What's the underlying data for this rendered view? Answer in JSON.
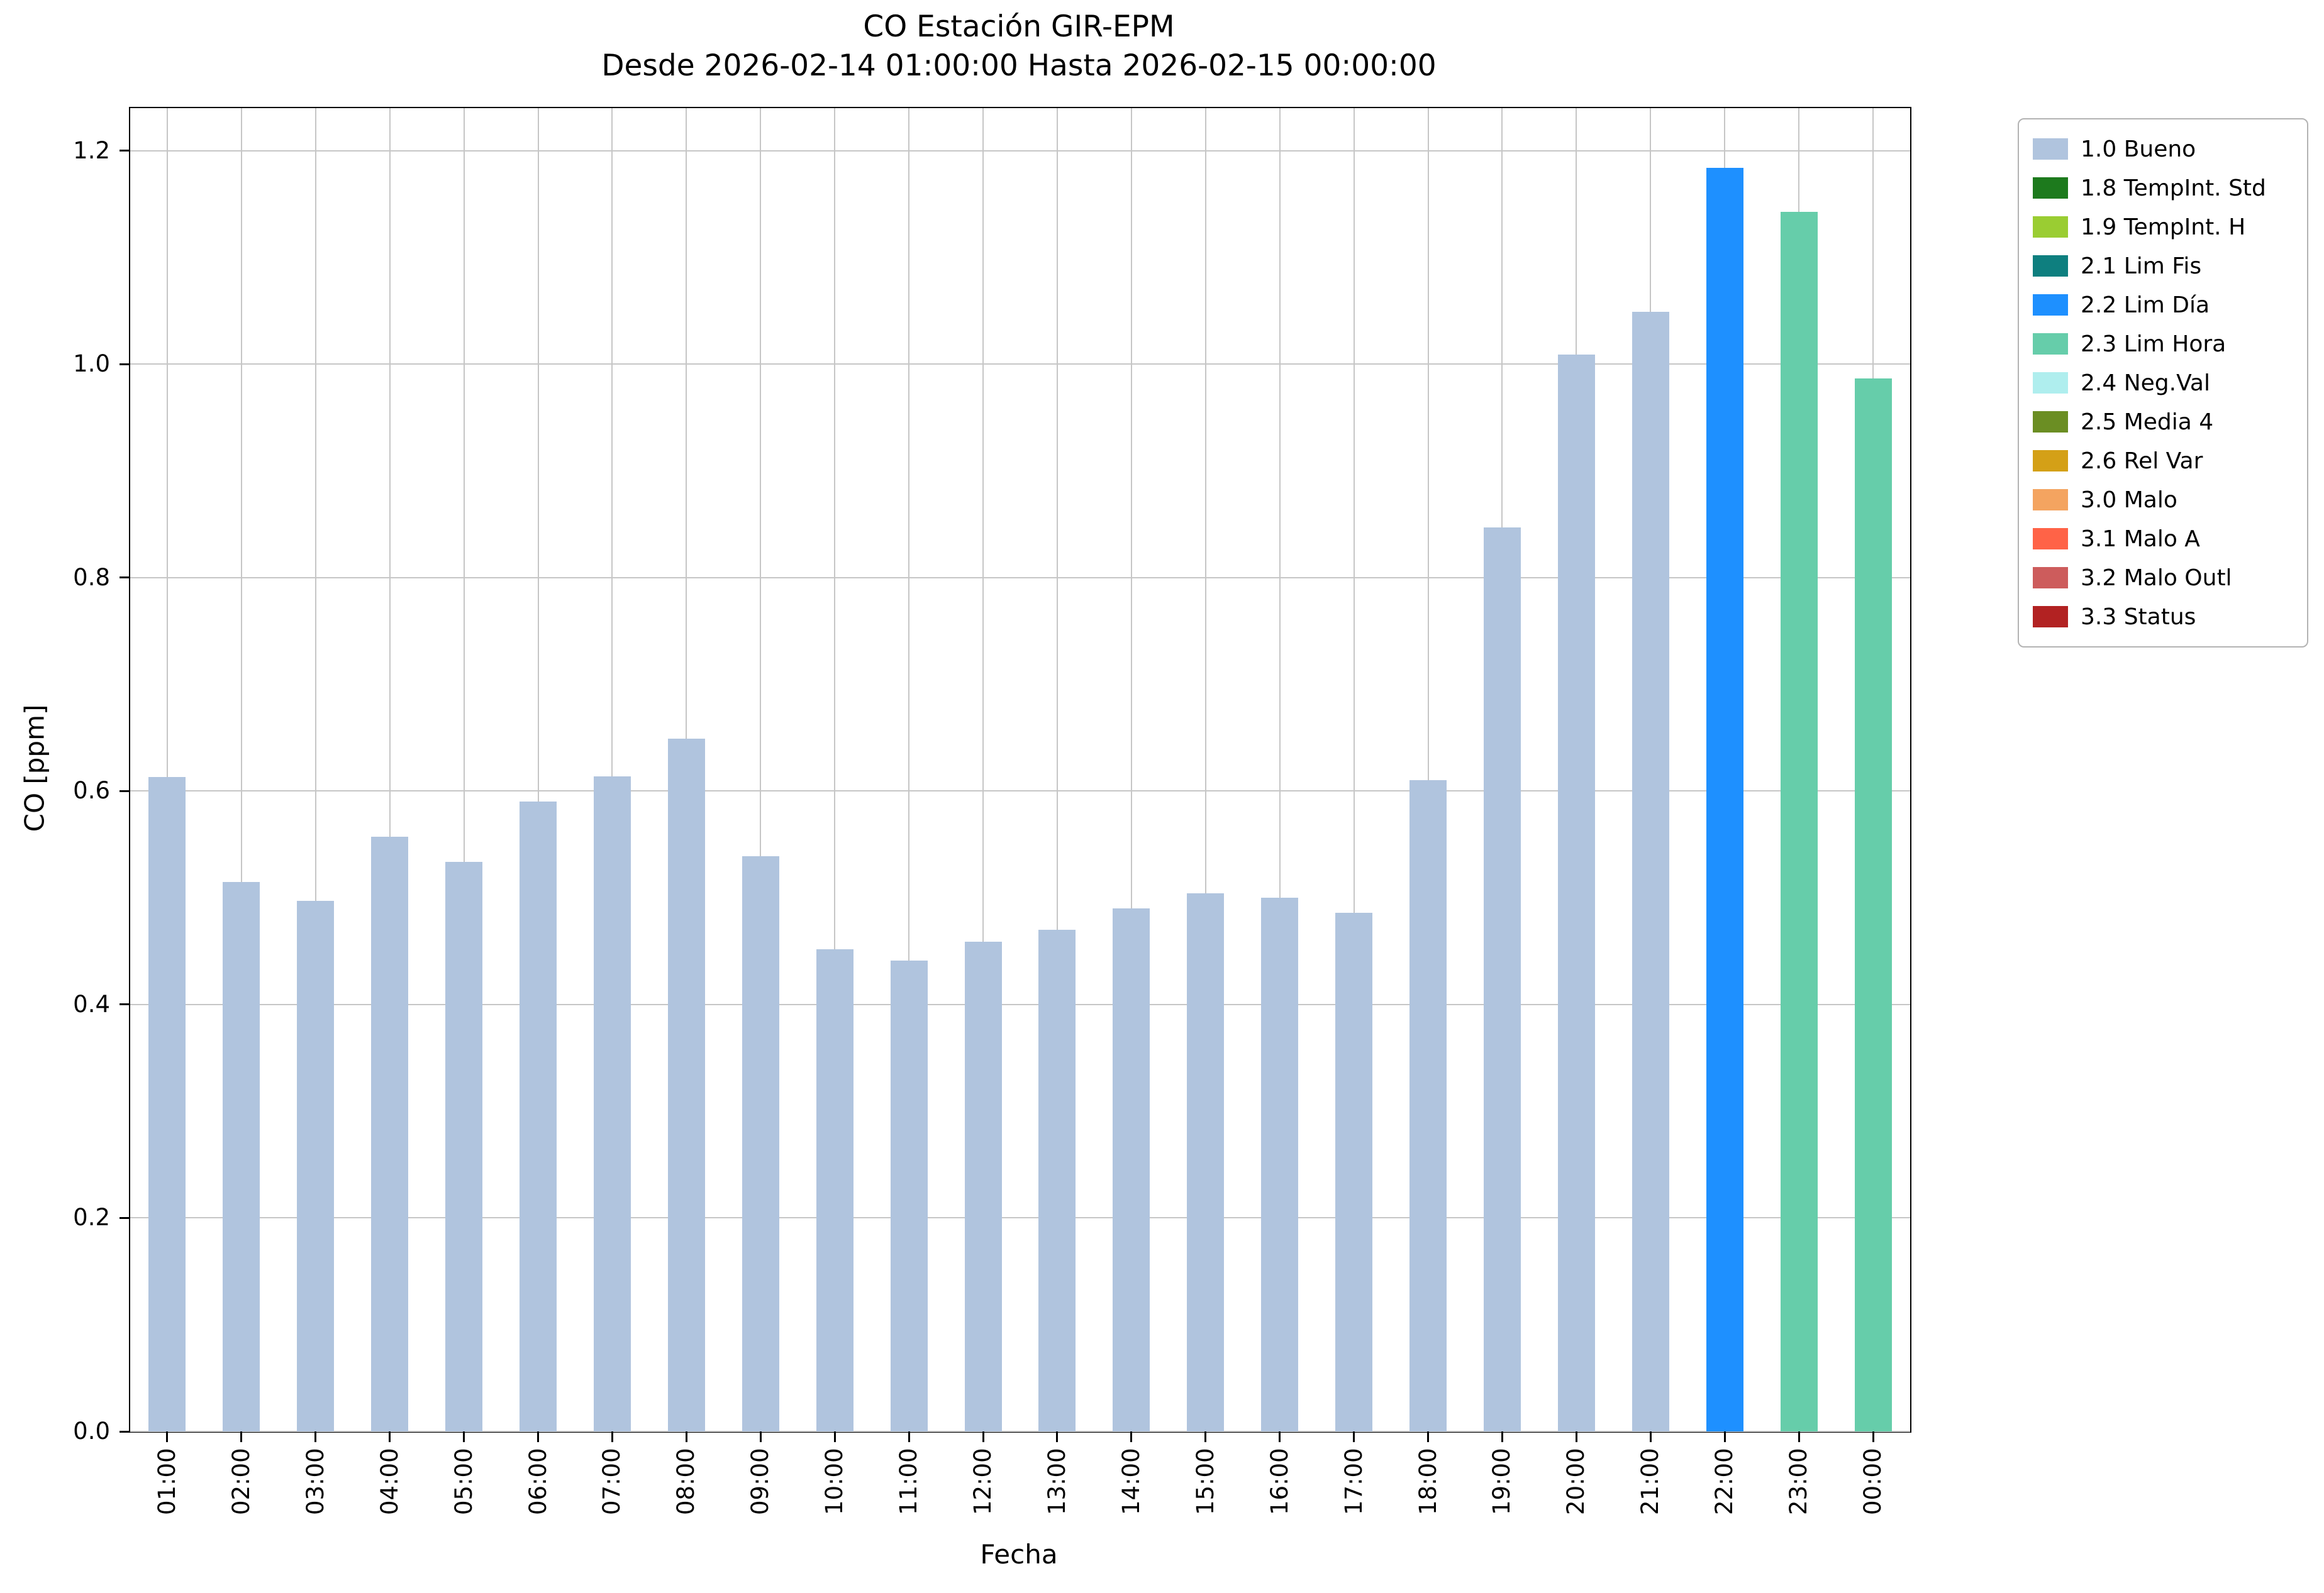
{
  "chart_data": {
    "type": "bar",
    "title": "CO Estación GIR-EPM",
    "subtitle": "Desde 2026-02-14 01:00:00 Hasta 2026-02-15 00:00:00",
    "xlabel": "Fecha",
    "ylabel": "CO [ppm]",
    "ylim": [
      0.0,
      1.24
    ],
    "yticks": [
      0.0,
      0.2,
      0.4,
      0.6,
      0.8,
      1.0,
      1.2
    ],
    "grid": true,
    "legend_position": "upper right, outside plot",
    "categories": [
      "01:00",
      "02:00",
      "03:00",
      "04:00",
      "05:00",
      "06:00",
      "07:00",
      "08:00",
      "09:00",
      "10:00",
      "11:00",
      "12:00",
      "13:00",
      "14:00",
      "15:00",
      "16:00",
      "17:00",
      "18:00",
      "19:00",
      "20:00",
      "21:00",
      "22:00",
      "23:00",
      "00:00"
    ],
    "values": [
      0.613,
      0.515,
      0.497,
      0.557,
      0.534,
      0.59,
      0.614,
      0.649,
      0.539,
      0.452,
      0.441,
      0.459,
      0.47,
      0.49,
      0.504,
      0.5,
      0.486,
      0.61,
      0.847,
      1.009,
      1.049,
      1.184,
      1.143,
      0.987
    ],
    "bar_status": [
      "1.0 Bueno",
      "1.0 Bueno",
      "1.0 Bueno",
      "1.0 Bueno",
      "1.0 Bueno",
      "1.0 Bueno",
      "1.0 Bueno",
      "1.0 Bueno",
      "1.0 Bueno",
      "1.0 Bueno",
      "1.0 Bueno",
      "1.0 Bueno",
      "1.0 Bueno",
      "1.0 Bueno",
      "1.0 Bueno",
      "1.0 Bueno",
      "1.0 Bueno",
      "1.0 Bueno",
      "1.0 Bueno",
      "1.0 Bueno",
      "1.0 Bueno",
      "2.2 Lim Día",
      "2.3 Lim Hora",
      "2.3 Lim Hora"
    ],
    "legend": [
      {
        "label": "1.0 Bueno",
        "color": "#b0c4de"
      },
      {
        "label": "1.8 TempInt. Std",
        "color": "#1d7a1d"
      },
      {
        "label": "1.9 TempInt. H",
        "color": "#9acd32"
      },
      {
        "label": "2.1 Lim Fis",
        "color": "#0e7f7f"
      },
      {
        "label": "2.2 Lim Día",
        "color": "#1e90ff"
      },
      {
        "label": "2.3 Lim Hora",
        "color": "#66cdaa"
      },
      {
        "label": "2.4 Neg.Val",
        "color": "#afeeee"
      },
      {
        "label": "2.5 Media 4",
        "color": "#6b8e23"
      },
      {
        "label": "2.6 Rel Var",
        "color": "#d4a017"
      },
      {
        "label": "3.0 Malo",
        "color": "#f4a460"
      },
      {
        "label": "3.1 Malo A",
        "color": "#ff6347"
      },
      {
        "label": "3.2 Malo Outl",
        "color": "#cd5c5c"
      },
      {
        "label": "3.3 Status",
        "color": "#b22222"
      }
    ]
  }
}
